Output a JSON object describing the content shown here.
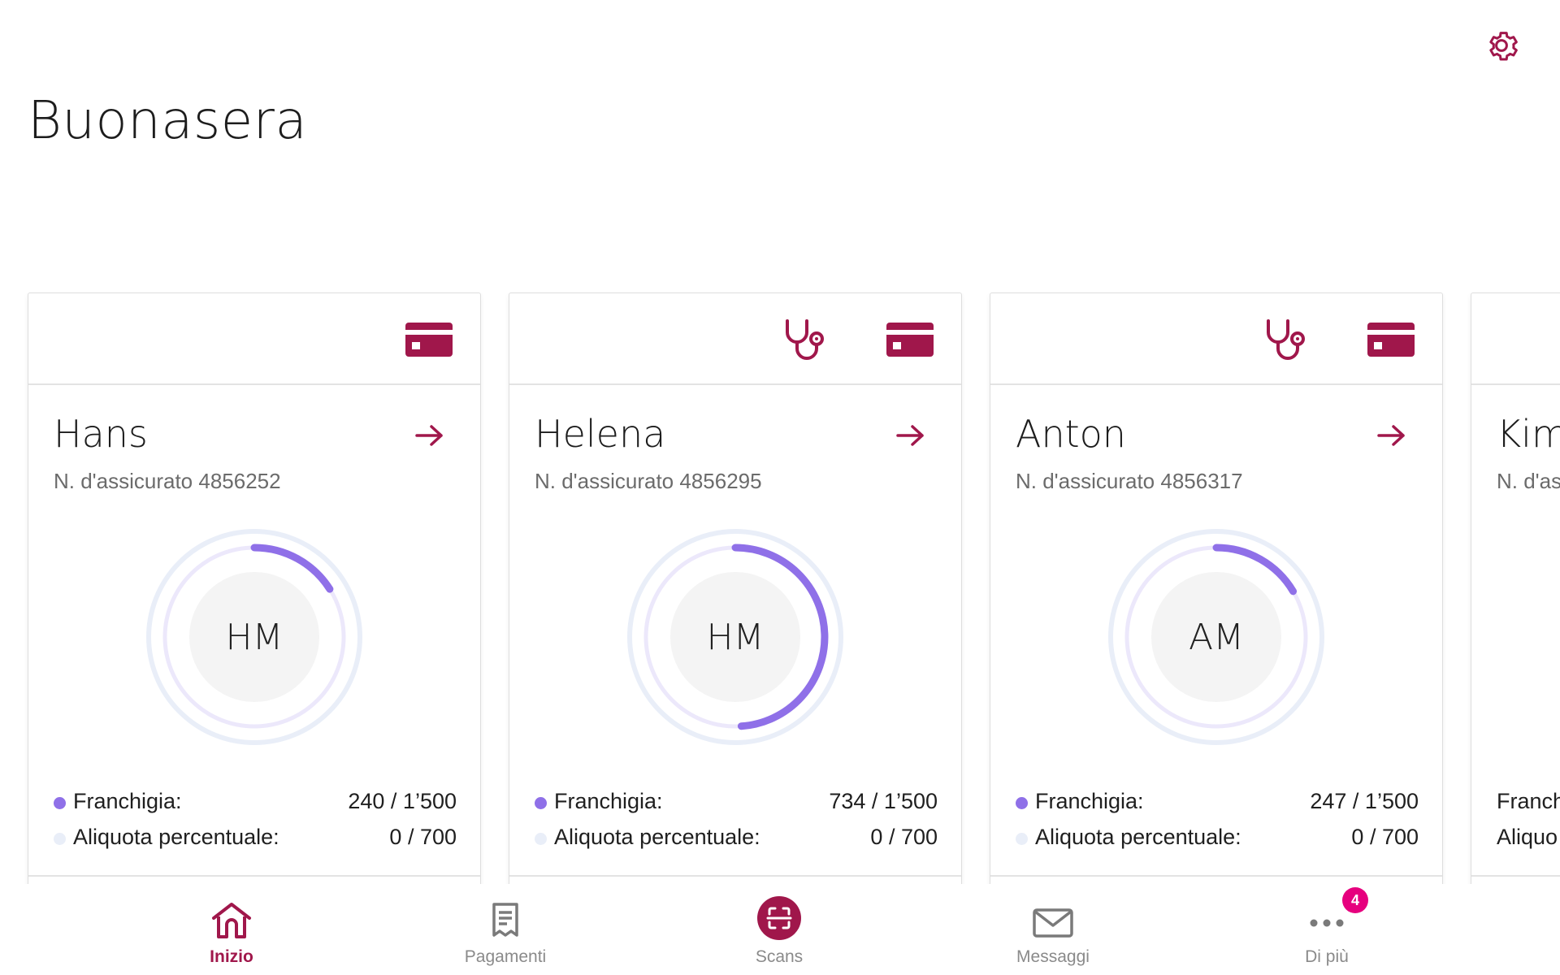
{
  "colors": {
    "brand": "#a0174b",
    "franchise_dot": "#8f70e8",
    "percent_dot": "#e9eef8",
    "badge": "#e6007e"
  },
  "header": {
    "greeting": "Buonasera",
    "settings_icon": "gear-icon"
  },
  "cards": [
    {
      "name": "Hans",
      "number": "N. d'assicurato 4856252",
      "initials": "HM",
      "has_doctor": false,
      "franchise_label": "Franchigia:",
      "franchise_value": "240 / 1’500",
      "franchise_used": 240,
      "franchise_total": 1500,
      "percent_label": "Aliquota percentuale:",
      "percent_value": "0 / 700"
    },
    {
      "name": "Helena",
      "number": "N. d'assicurato 4856295",
      "initials": "HM",
      "has_doctor": true,
      "franchise_label": "Franchigia:",
      "franchise_value": "734 / 1’500",
      "franchise_used": 734,
      "franchise_total": 1500,
      "percent_label": "Aliquota percentuale:",
      "percent_value": "0 / 700"
    },
    {
      "name": "Anton",
      "number": "N. d'assicurato 4856317",
      "initials": "AM",
      "has_doctor": true,
      "franchise_label": "Franchigia:",
      "franchise_value": "247 / 1’500",
      "franchise_used": 247,
      "franchise_total": 1500,
      "percent_label": "Aliquota percentuale:",
      "percent_value": "0 / 700"
    },
    {
      "name": "Kim",
      "number": "N. d'as",
      "initials": "",
      "has_doctor": false,
      "franchise_label": "Franch",
      "franchise_value": "",
      "percent_label": "Aliquo",
      "percent_value": ""
    }
  ],
  "nav": {
    "items": [
      {
        "label": "Inizio",
        "icon": "home-icon",
        "active": true
      },
      {
        "label": "Pagamenti",
        "icon": "receipt-icon",
        "active": false
      },
      {
        "label": "Scans",
        "icon": "scan-icon",
        "active": false
      },
      {
        "label": "Messaggi",
        "icon": "mail-icon",
        "active": false
      },
      {
        "label": "Di più",
        "icon": "more-icon",
        "active": false
      }
    ],
    "badge": "4"
  }
}
